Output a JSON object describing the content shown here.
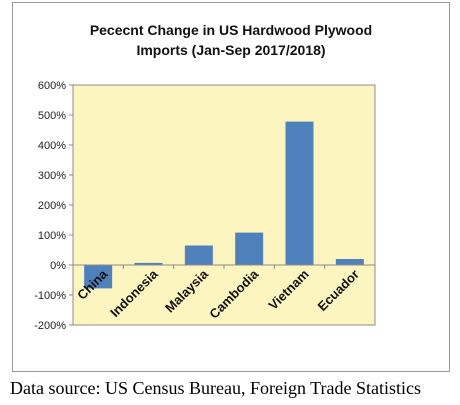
{
  "chart_data": {
    "type": "bar",
    "title_lines": [
      "Pececnt Change in US Hardwood Plywood",
      "Imports (Jan-Sep 2017/2018)"
    ],
    "categories": [
      "China",
      "Indonesia",
      "Malaysia",
      "Cambodia",
      "Vietnam",
      "Ecuador"
    ],
    "values": [
      -78,
      7,
      65,
      108,
      478,
      20
    ],
    "y_tick_labels": [
      "-200%",
      "-100%",
      "0%",
      "100%",
      "200%",
      "300%",
      "400%",
      "500%",
      "600%"
    ],
    "y_ticks": [
      -200,
      -100,
      0,
      100,
      200,
      300,
      400,
      500,
      600
    ],
    "ylim": [
      -200,
      600
    ],
    "grid": false,
    "legend": "none",
    "colors": {
      "bar": "#4f81bd",
      "plot_background": "#fdf5c0"
    }
  },
  "source_note": "Data source: US Census Bureau, Foreign Trade Statistics"
}
